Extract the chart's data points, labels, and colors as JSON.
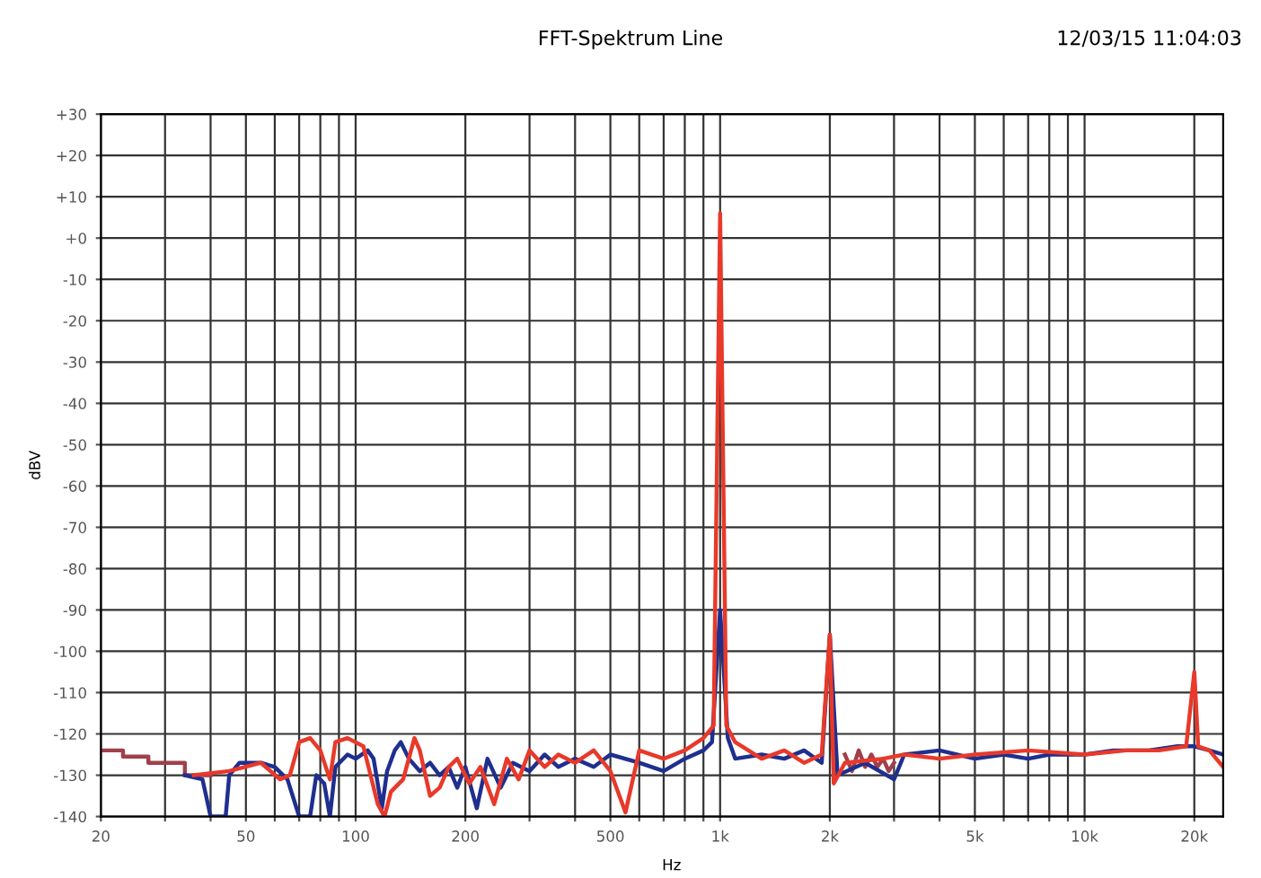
{
  "chart_data": {
    "type": "line",
    "title": "FFT-Spektrum Line",
    "xlabel": "Hz",
    "ylabel": "dBV",
    "annotations": [
      "12/03/15 11:04:03"
    ],
    "log": "x",
    "grid": true,
    "legend": false,
    "line_style": "solid",
    "marker": "none",
    "xlim": [
      20,
      24000
    ],
    "xticks": [
      20,
      {
        "value": 30,
        "label": null
      },
      {
        "value": 40,
        "label": null
      },
      50,
      {
        "value": 60,
        "label": null
      },
      {
        "value": 70,
        "label": null
      },
      {
        "value": 80,
        "label": null
      },
      {
        "value": 90,
        "label": null
      },
      100,
      200,
      {
        "value": 300,
        "label": null
      },
      {
        "value": 400,
        "label": null
      },
      500,
      {
        "value": 600,
        "label": null
      },
      {
        "value": 700,
        "label": null
      },
      {
        "value": 800,
        "label": null
      },
      {
        "value": 900,
        "label": null
      },
      {
        "value": 1000,
        "label": "1k"
      },
      {
        "value": 2000,
        "label": "2k"
      },
      {
        "value": 3000,
        "label": null
      },
      {
        "value": 4000,
        "label": null
      },
      {
        "value": 5000,
        "label": "5k"
      },
      {
        "value": 6000,
        "label": null
      },
      {
        "value": 7000,
        "label": null
      },
      {
        "value": 8000,
        "label": null
      },
      {
        "value": 9000,
        "label": null
      },
      {
        "value": 10000,
        "label": "10k"
      },
      {
        "value": 20000,
        "label": "20k"
      }
    ],
    "ylim": [
      -140,
      30
    ],
    "yticks": [
      {
        "value": 30,
        "label": "+30"
      },
      {
        "value": 20,
        "label": "+20"
      },
      {
        "value": 10,
        "label": "+10"
      },
      {
        "value": 0,
        "label": "+0"
      },
      -10,
      -20,
      -30,
      -40,
      -50,
      -60,
      -70,
      -80,
      -90,
      -100,
      -110,
      -120,
      -130,
      -140
    ],
    "series": [
      {
        "color": "#a0404a",
        "x": [
          20,
          23,
          23,
          27,
          27,
          34,
          34,
          40,
          1000,
          2200,
          2300,
          2400,
          2500,
          2600,
          2700,
          2800,
          2900,
          3000
        ],
        "values": [
          -124,
          -124,
          -125.5,
          -125.5,
          -127,
          -127,
          -130,
          -130,
          null,
          -125,
          -129,
          -124,
          -128,
          -125,
          -128,
          -126,
          -129,
          -127
        ]
      },
      {
        "color": "#1f2f8f",
        "x": [
          34,
          38,
          40,
          44,
          45,
          48,
          55,
          60,
          65,
          70,
          75,
          78,
          82,
          85,
          88,
          95,
          100,
          108,
          112,
          118,
          122,
          128,
          133,
          140,
          150,
          160,
          170,
          180,
          190,
          200,
          215,
          230,
          250,
          270,
          300,
          330,
          360,
          400,
          450,
          500,
          600,
          700,
          800,
          900,
          950,
          1000,
          1050,
          1100,
          1300,
          1500,
          1700,
          1900,
          2000,
          2100,
          2500,
          3000,
          3200,
          4000,
          5000,
          6000,
          7000,
          8000,
          10000,
          12000,
          15000,
          18000,
          20000,
          22000,
          24000
        ],
        "values": [
          -130,
          -131,
          -140,
          -140,
          -130,
          -127,
          -127,
          -128,
          -131,
          -140,
          -140,
          -130,
          -132,
          -140,
          -128,
          -125,
          -126,
          -124,
          -126,
          -138,
          -129,
          -124,
          -122,
          -126,
          -129,
          -127,
          -130,
          -128,
          -133,
          -128,
          -138,
          -126,
          -133,
          -127,
          -129,
          -125,
          -128,
          -126,
          -128,
          -125,
          -127,
          -129,
          -126,
          -124,
          -122,
          -90,
          -121,
          -126,
          -125,
          -126,
          -124,
          -127,
          -96,
          -130,
          -127,
          -131,
          -125,
          -124,
          -126,
          -125,
          -126,
          -125,
          -125,
          -124,
          -124,
          -123,
          -123,
          -124,
          -125
        ]
      },
      {
        "color": "#e8392a",
        "x": [
          36,
          45,
          55,
          62,
          66,
          70,
          75,
          80,
          85,
          88,
          95,
          105,
          115,
          120,
          125,
          135,
          145,
          150,
          160,
          170,
          180,
          190,
          205,
          220,
          240,
          260,
          280,
          300,
          330,
          360,
          400,
          450,
          500,
          550,
          600,
          700,
          800,
          900,
          960,
          1000,
          1040,
          1100,
          1300,
          1500,
          1700,
          1900,
          2000,
          2050,
          2200,
          2800,
          3200,
          4000,
          5000,
          7000,
          10000,
          13000,
          16000,
          19000,
          20000,
          20500,
          22000,
          24000
        ],
        "values": [
          -130,
          -129,
          -127,
          -131,
          -130,
          -122,
          -121,
          -124,
          -131,
          -122,
          -121,
          -123,
          -137,
          -140,
          -134,
          -131,
          -121,
          -124,
          -135,
          -133,
          -128,
          -126,
          -132,
          -128,
          -137,
          -126,
          -131,
          -124,
          -128,
          -125,
          -127,
          -124,
          -129,
          -139,
          -124,
          -126,
          -124,
          -121,
          -118,
          6,
          -118,
          -122,
          -126,
          -124,
          -127,
          -125,
          -96,
          -132,
          -127,
          -126,
          -125,
          -126,
          -125,
          -124,
          -125,
          -124,
          -124,
          -123,
          -105,
          -123,
          -124,
          -128
        ]
      }
    ]
  }
}
